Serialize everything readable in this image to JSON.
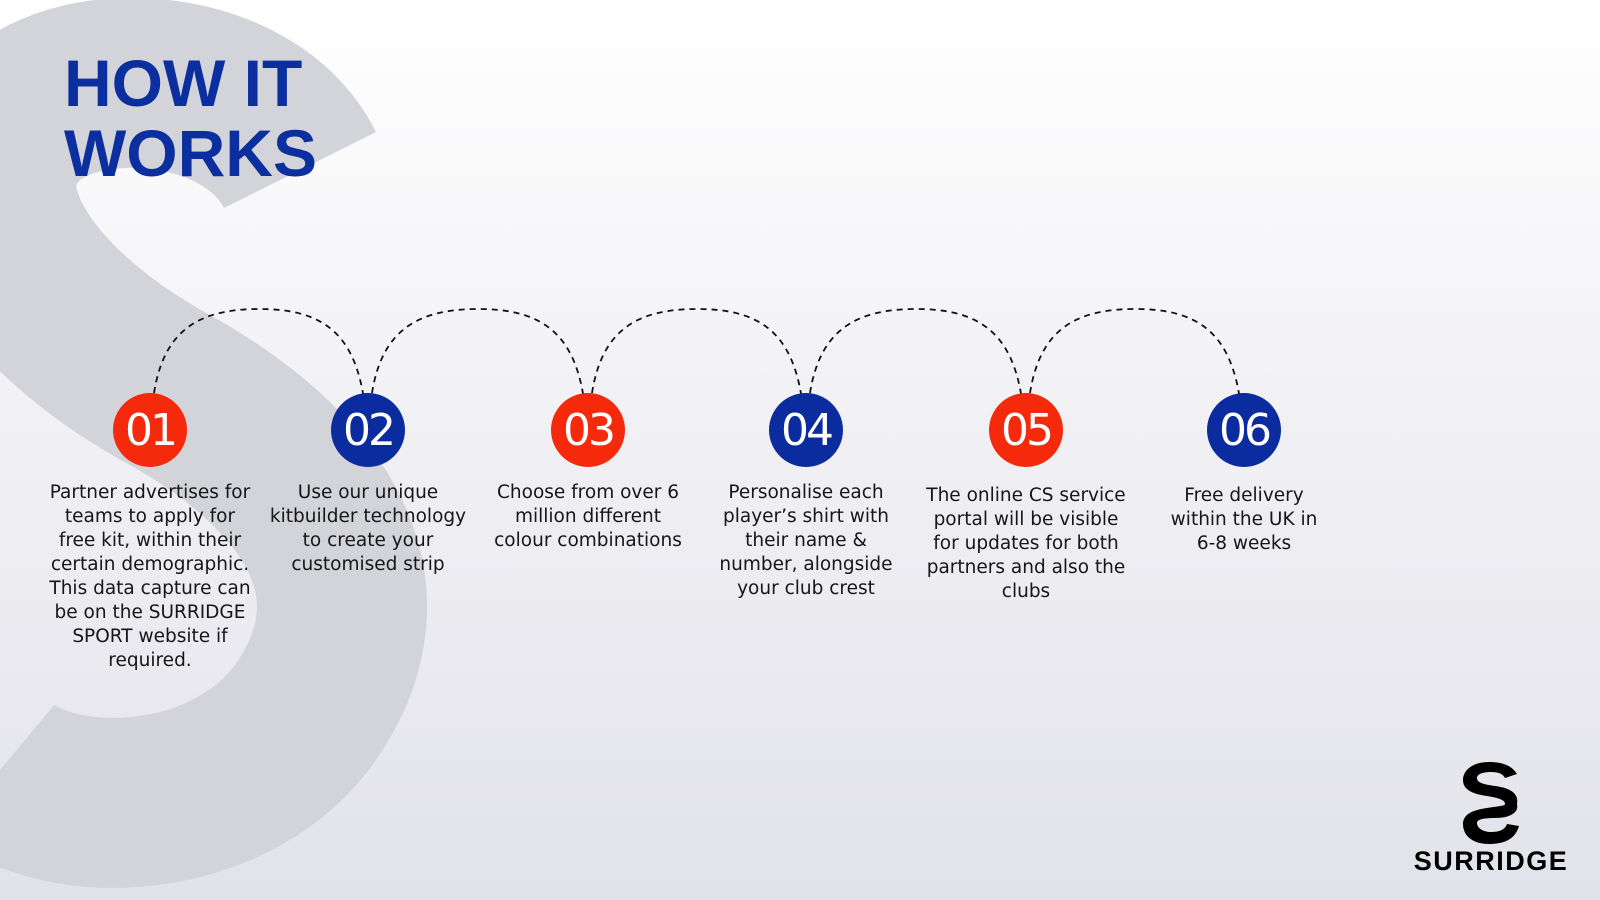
{
  "title": {
    "line1": "HOW IT",
    "line2": "WORKS"
  },
  "colors": {
    "title": "#0b2f9f",
    "red": "#f5290c",
    "blue": "#0b2c9e",
    "background_s": "#c9c9d0"
  },
  "steps": [
    {
      "number": "01",
      "color": "#f5290c",
      "text": "Partner advertises for teams to apply for free kit, within their certain demographic. This data capture can be on the SURRIDGE SPORT website if required."
    },
    {
      "number": "02",
      "color": "#0b2c9e",
      "text": "Use our unique kitbuilder technology to create your customised strip"
    },
    {
      "number": "03",
      "color": "#f5290c",
      "text": "Choose from over 6 million different colour combinations"
    },
    {
      "number": "04",
      "color": "#0b2c9e",
      "text": "Personalise each player’s shirt with their name & number, alongside your club crest"
    },
    {
      "number": "05",
      "color": "#f5290c",
      "text": "The online CS service portal will be visible for updates for both partners and also the clubs"
    },
    {
      "number": "06",
      "color": "#0b2c9e",
      "text": "Free delivery within the UK in 6-8 weeks"
    }
  ],
  "logo": {
    "wordmark": "SURRIDGE",
    "icon": "surridge-s-logo"
  }
}
